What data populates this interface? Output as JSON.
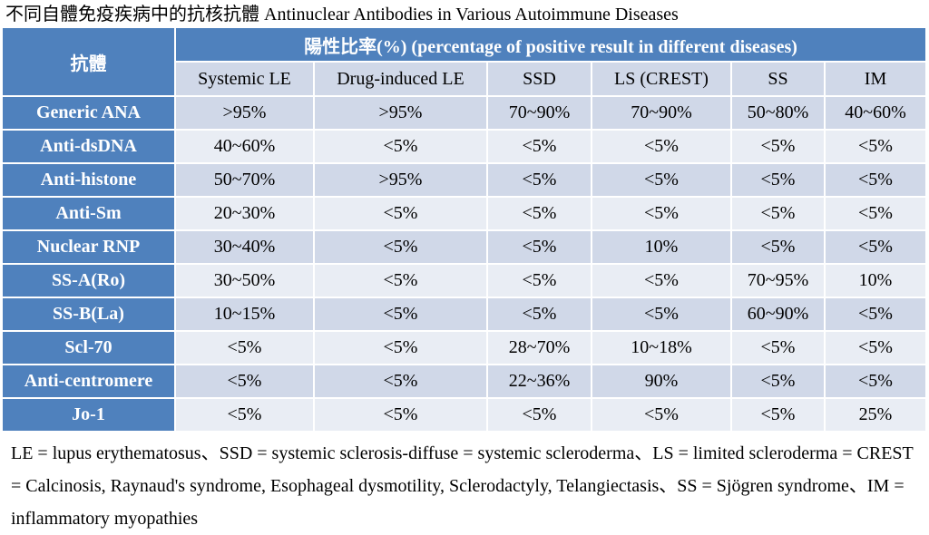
{
  "caption": "不同自體免疫疾病中的抗核抗體 Antinuclear Antibodies in Various Autoimmune Diseases",
  "table": {
    "corner": "抗體",
    "group_header": "陽性比率(%) (percentage of positive result in different diseases)",
    "columns": [
      "Systemic LE",
      "Drug-induced LE",
      "SSD",
      "LS (CREST)",
      "SS",
      "IM"
    ],
    "rows": [
      {
        "label": "Generic ANA",
        "values": [
          ">95%",
          ">95%",
          "70~90%",
          "70~90%",
          "50~80%",
          "40~60%"
        ]
      },
      {
        "label": "Anti-dsDNA",
        "values": [
          "40~60%",
          "<5%",
          "<5%",
          "<5%",
          "<5%",
          "<5%"
        ]
      },
      {
        "label": "Anti-histone",
        "values": [
          "50~70%",
          ">95%",
          "<5%",
          "<5%",
          "<5%",
          "<5%"
        ]
      },
      {
        "label": "Anti-Sm",
        "values": [
          "20~30%",
          "<5%",
          "<5%",
          "<5%",
          "<5%",
          "<5%"
        ]
      },
      {
        "label": "Nuclear RNP",
        "values": [
          "30~40%",
          "<5%",
          "<5%",
          "10%",
          "<5%",
          "<5%"
        ]
      },
      {
        "label": "SS-A(Ro)",
        "values": [
          "30~50%",
          "<5%",
          "<5%",
          "<5%",
          "70~95%",
          "10%"
        ]
      },
      {
        "label": "SS-B(La)",
        "values": [
          "10~15%",
          "<5%",
          "<5%",
          "<5%",
          "60~90%",
          "<5%"
        ]
      },
      {
        "label": "Scl-70",
        "values": [
          "<5%",
          "<5%",
          "28~70%",
          "10~18%",
          "<5%",
          "<5%"
        ]
      },
      {
        "label": "Anti-centromere",
        "values": [
          "<5%",
          "<5%",
          "22~36%",
          "90%",
          "<5%",
          "<5%"
        ]
      },
      {
        "label": "Jo-1",
        "values": [
          "<5%",
          "<5%",
          "<5%",
          "<5%",
          "<5%",
          "25%"
        ]
      }
    ]
  },
  "footnote": "LE = lupus erythematosus、SSD = systemic sclerosis-diffuse = systemic scleroderma、LS = limited scleroderma = CREST = Calcinosis, Raynaud's syndrome, Esophageal dysmotility, Sclerodactyly, Telangiectasis、SS = Sjögren syndrome、IM = inflammatory myopathies",
  "colors": {
    "header": "#4f81bd",
    "row_dark": "#d0d8e8",
    "row_light": "#e9edf4"
  }
}
